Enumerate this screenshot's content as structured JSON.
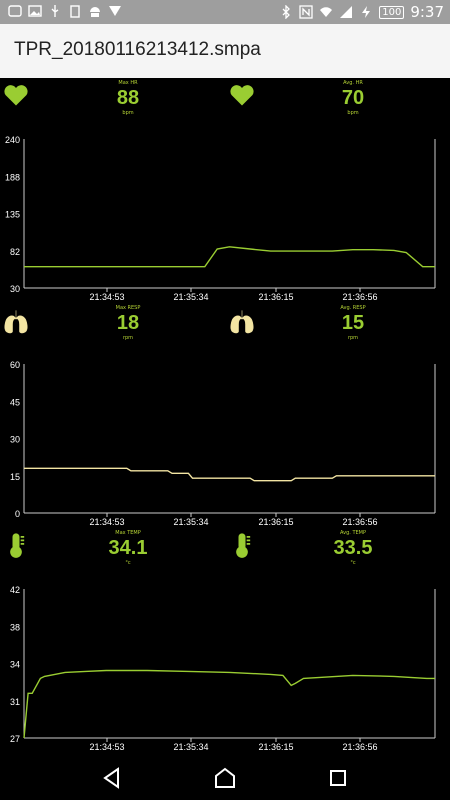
{
  "status": {
    "battery": "100",
    "time": "9:37"
  },
  "app": {
    "title": "TPR_20180116213412.smpa"
  },
  "panels": [
    {
      "icon": "heart-icon",
      "color": "#9acd32",
      "stats": [
        {
          "label": "Max HR",
          "value": "88",
          "unit": "bpm"
        },
        {
          "label": "Avg. HR",
          "value": "70",
          "unit": "bpm"
        }
      ]
    },
    {
      "icon": "lungs-icon",
      "color": "#f3e5a3",
      "stats": [
        {
          "label": "Max RESP",
          "value": "18",
          "unit": "rpm"
        },
        {
          "label": "Avg. RESP",
          "value": "15",
          "unit": "rpm"
        }
      ]
    },
    {
      "icon": "thermometer-icon",
      "color": "#9acd32",
      "stats": [
        {
          "label": "Max TEMP",
          "value": "34.1",
          "unit": "°c"
        },
        {
          "label": "Avg. TEMP",
          "value": "33.5",
          "unit": "°c"
        }
      ]
    }
  ],
  "chart_data": [
    {
      "type": "line",
      "yticks": [
        "240",
        "188",
        "135",
        "82",
        "30"
      ],
      "ylim": [
        30,
        240
      ],
      "xticks": [
        "21:34:53",
        "21:35:34",
        "21:36:15",
        "21:36:56"
      ],
      "x_fraction": [
        0,
        0.44,
        0.47,
        0.5,
        0.55,
        0.6,
        0.65,
        0.7,
        0.75,
        0.8,
        0.85,
        0.9,
        0.93,
        0.97,
        1
      ],
      "values": [
        60,
        60,
        85,
        88,
        85,
        82,
        82,
        82,
        82,
        84,
        84,
        83,
        80,
        60,
        60
      ],
      "color": "#9acd32"
    },
    {
      "type": "line",
      "yticks": [
        "60",
        "45",
        "30",
        "15",
        "0"
      ],
      "ylim": [
        0,
        60
      ],
      "xticks": [
        "21:34:53",
        "21:35:34",
        "21:36:15",
        "21:36:56"
      ],
      "x_fraction": [
        0,
        0.25,
        0.26,
        0.35,
        0.36,
        0.4,
        0.41,
        0.55,
        0.56,
        0.65,
        0.66,
        0.75,
        0.76,
        1
      ],
      "values": [
        18,
        18,
        17,
        17,
        16,
        16,
        14,
        14,
        13,
        13,
        14,
        14,
        15,
        15
      ],
      "color": "#f3e5a3"
    },
    {
      "type": "line",
      "yticks": [
        "42",
        "38",
        "34",
        "31",
        "27"
      ],
      "ylim": [
        27,
        42
      ],
      "xticks": [
        "21:34:53",
        "21:35:34",
        "21:36:15",
        "21:36:56"
      ],
      "x_fraction": [
        0,
        0.01,
        0.02,
        0.04,
        0.05,
        0.1,
        0.15,
        0.2,
        0.25,
        0.3,
        0.4,
        0.5,
        0.6,
        0.63,
        0.65,
        0.66,
        0.68,
        0.72,
        0.8,
        0.9,
        0.98,
        1
      ],
      "values": [
        27,
        31.5,
        31.5,
        33,
        33.2,
        33.6,
        33.7,
        33.8,
        33.8,
        33.8,
        33.7,
        33.6,
        33.4,
        33.3,
        32.3,
        32.5,
        33,
        33.1,
        33.3,
        33.2,
        33,
        33
      ],
      "color": "#9acd32"
    }
  ]
}
